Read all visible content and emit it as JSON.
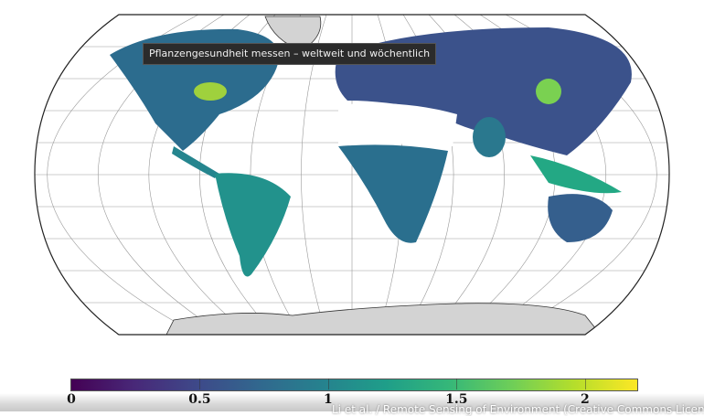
{
  "tooltip": "Pflanzengesundheit messen – weltweit und wöchentlich",
  "colorbar": {
    "min": 0,
    "max": 2.2,
    "colormap": "viridis",
    "ticks": [
      "0",
      "0.5",
      "1",
      "1.5",
      "2"
    ]
  },
  "caption": "Li et al. / Remote Sensing of Environment (Creative Commons Licence",
  "colors": {
    "ice": "#d3d3d3",
    "no_data": "#ffffff",
    "low": "#440154",
    "high": "#fde725"
  }
}
